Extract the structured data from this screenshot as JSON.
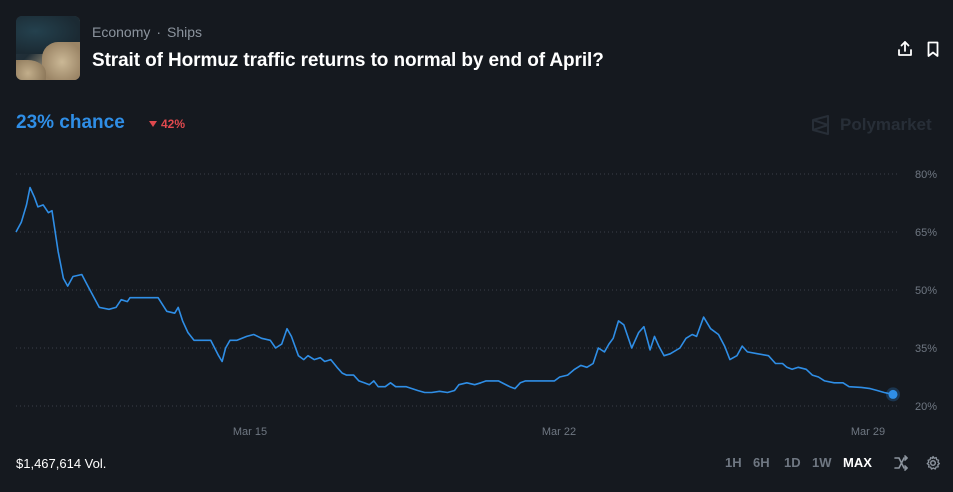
{
  "header": {
    "breadcrumb": [
      "Economy",
      "Ships"
    ],
    "breadcrumb_sep": "·",
    "title": "Strait of Hormuz traffic returns to normal by end of April?",
    "icons": [
      "share-icon",
      "bookmark-icon"
    ]
  },
  "summary": {
    "chance": "23% chance",
    "delta": "42%",
    "delta_direction": "down",
    "brand": "Polymarket"
  },
  "colors": {
    "line": "#2f8ee6",
    "negative": "#e0494e",
    "background": "#15191f",
    "grid": "#3a4049",
    "tick": "#6f7782"
  },
  "footer": {
    "volume": "$1,467,614 Vol.",
    "ranges": [
      "1H",
      "6H",
      "1D",
      "1W",
      "MAX"
    ],
    "active_range": "MAX",
    "icons": [
      "shuffle-icon",
      "settings-icon"
    ]
  },
  "chart_data": {
    "type": "line",
    "x_tick_labels": [
      "Mar 15",
      "Mar 22",
      "Mar 29"
    ],
    "y_tick_labels": [
      "80%",
      "65%",
      "50%",
      "35%",
      "20%"
    ],
    "ylim": [
      20,
      80
    ],
    "grid": "horizontal dotted",
    "series": [
      {
        "values": [
          [
            0.0,
            65.0
          ],
          [
            0.6,
            67.5
          ],
          [
            1.2,
            72.0
          ],
          [
            1.6,
            76.5
          ],
          [
            2.1,
            74.0
          ],
          [
            2.5,
            71.5
          ],
          [
            3.1,
            72.0
          ],
          [
            3.7,
            70.0
          ],
          [
            4.1,
            70.5
          ],
          [
            4.8,
            60.0
          ],
          [
            5.4,
            53.0
          ],
          [
            5.9,
            51.0
          ],
          [
            6.5,
            53.5
          ],
          [
            7.5,
            54.0
          ],
          [
            8.2,
            51.0
          ],
          [
            9.5,
            45.5
          ],
          [
            10.6,
            45.0
          ],
          [
            11.4,
            45.5
          ],
          [
            12.0,
            47.5
          ],
          [
            12.7,
            47.0
          ],
          [
            13.0,
            48.0
          ],
          [
            16.2,
            48.0
          ],
          [
            17.2,
            44.5
          ],
          [
            18.1,
            44.0
          ],
          [
            18.5,
            45.5
          ],
          [
            19.0,
            42.0
          ],
          [
            19.6,
            39.0
          ],
          [
            20.3,
            37.0
          ],
          [
            22.2,
            37.0
          ],
          [
            23.1,
            33.0
          ],
          [
            23.5,
            31.5
          ],
          [
            23.9,
            35.0
          ],
          [
            24.4,
            37.0
          ],
          [
            25.2,
            37.0
          ],
          [
            26.3,
            38.0
          ],
          [
            27.1,
            38.5
          ],
          [
            28.0,
            37.5
          ],
          [
            29.0,
            37.0
          ],
          [
            29.6,
            35.0
          ],
          [
            30.3,
            36.0
          ],
          [
            30.9,
            40.0
          ],
          [
            31.4,
            38.0
          ],
          [
            32.2,
            33.0
          ],
          [
            32.8,
            32.0
          ],
          [
            33.3,
            33.0
          ],
          [
            34.0,
            32.0
          ],
          [
            34.7,
            32.5
          ],
          [
            35.2,
            31.5
          ],
          [
            35.9,
            32.0
          ],
          [
            36.6,
            30.0
          ],
          [
            37.2,
            28.5
          ],
          [
            37.7,
            28.0
          ],
          [
            38.5,
            28.0
          ],
          [
            39.1,
            26.5
          ],
          [
            39.7,
            26.0
          ],
          [
            40.3,
            25.5
          ],
          [
            40.8,
            26.5
          ],
          [
            41.3,
            25.0
          ],
          [
            42.1,
            25.0
          ],
          [
            42.7,
            26.0
          ],
          [
            43.3,
            25.0
          ],
          [
            44.5,
            25.0
          ],
          [
            45.8,
            24.0
          ],
          [
            46.6,
            23.5
          ],
          [
            47.4,
            23.5
          ],
          [
            48.3,
            23.8
          ],
          [
            49.2,
            23.5
          ],
          [
            50.0,
            24.0
          ],
          [
            50.5,
            25.5
          ],
          [
            51.4,
            26.0
          ],
          [
            52.3,
            25.5
          ],
          [
            53.0,
            26.0
          ],
          [
            53.6,
            26.5
          ],
          [
            55.0,
            26.5
          ],
          [
            56.3,
            25.0
          ],
          [
            56.9,
            24.5
          ],
          [
            57.5,
            26.0
          ],
          [
            58.1,
            26.5
          ],
          [
            61.4,
            26.5
          ],
          [
            62.0,
            27.5
          ],
          [
            62.9,
            28.0
          ],
          [
            63.7,
            29.5
          ],
          [
            64.4,
            30.5
          ],
          [
            65.1,
            30.0
          ],
          [
            65.8,
            31.0
          ],
          [
            66.4,
            35.0
          ],
          [
            67.1,
            34.0
          ],
          [
            67.6,
            36.0
          ],
          [
            68.1,
            37.5
          ],
          [
            68.7,
            42.0
          ],
          [
            69.3,
            41.0
          ],
          [
            70.2,
            35.0
          ],
          [
            71.0,
            39.0
          ],
          [
            71.6,
            40.5
          ],
          [
            72.3,
            34.5
          ],
          [
            72.8,
            38.0
          ],
          [
            73.3,
            35.5
          ],
          [
            73.9,
            33.0
          ],
          [
            74.6,
            33.5
          ],
          [
            75.7,
            35.0
          ],
          [
            76.4,
            37.5
          ],
          [
            77.1,
            38.5
          ],
          [
            77.6,
            38.0
          ],
          [
            78.4,
            43.0
          ],
          [
            79.2,
            40.0
          ],
          [
            80.1,
            38.5
          ],
          [
            80.8,
            35.5
          ],
          [
            81.4,
            32.0
          ],
          [
            82.2,
            33.0
          ],
          [
            82.8,
            35.5
          ],
          [
            83.4,
            34.0
          ],
          [
            84.6,
            33.5
          ],
          [
            85.8,
            33.0
          ],
          [
            86.6,
            31.0
          ],
          [
            87.4,
            31.0
          ],
          [
            87.9,
            30.0
          ],
          [
            88.5,
            29.5
          ],
          [
            89.2,
            30.0
          ],
          [
            90.1,
            29.5
          ],
          [
            90.8,
            28.0
          ],
          [
            91.5,
            27.5
          ],
          [
            92.2,
            26.5
          ],
          [
            93.3,
            26.0
          ],
          [
            94.3,
            26.0
          ],
          [
            95.0,
            25.0
          ],
          [
            96.4,
            24.8
          ],
          [
            97.4,
            24.5
          ],
          [
            98.2,
            24.0
          ],
          [
            99.0,
            23.5
          ],
          [
            100.0,
            23.0
          ]
        ]
      }
    ],
    "end_value": 23
  }
}
